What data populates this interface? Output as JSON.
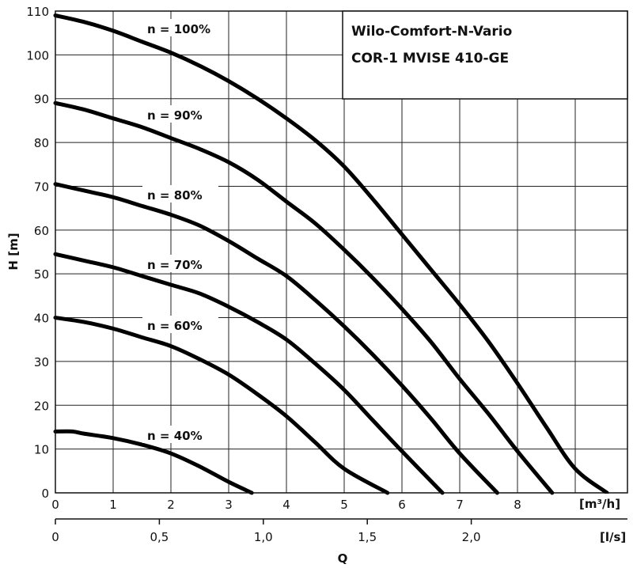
{
  "chart_data": {
    "type": "line",
    "title_lines": [
      "Wilo-Comfort-N-Vario",
      "COR-1 MVISE 410-GE"
    ],
    "ylabel": "H [m]",
    "xlabel": "Q",
    "x_unit_primary": "[m³/h]",
    "x_unit_secondary": "[l/s]",
    "xlim": [
      0,
      10
    ],
    "ylim": [
      0,
      110
    ],
    "x_ticks": [
      "0",
      "1",
      "2",
      "3",
      "4",
      "5",
      "6",
      "7",
      "8"
    ],
    "x_ticks_secondary": [
      {
        "value": 0,
        "label": "0"
      },
      {
        "value": 0.5,
        "label": "0,5"
      },
      {
        "value": 1.0,
        "label": "1,0"
      },
      {
        "value": 1.5,
        "label": "1,5"
      },
      {
        "value": 2.0,
        "label": "2,0"
      }
    ],
    "y_ticks": [
      "0",
      "10",
      "20",
      "30",
      "40",
      "50",
      "60",
      "70",
      "80",
      "90",
      "100",
      "110"
    ],
    "grid": true,
    "series": [
      {
        "name": "n = 100%",
        "x": [
          0,
          0.5,
          1,
          1.5,
          2,
          2.5,
          3,
          3.5,
          4,
          4.5,
          5,
          5.5,
          6,
          6.5,
          7,
          7.5,
          8,
          8.5,
          9,
          9.55
        ],
        "y": [
          109,
          107.5,
          105.5,
          103,
          100.5,
          97.5,
          94,
          90,
          85.5,
          80.5,
          74.5,
          67,
          59,
          51,
          43,
          34.5,
          25,
          15,
          5.5,
          0
        ]
      },
      {
        "name": "n = 90%",
        "x": [
          0,
          0.5,
          1,
          1.5,
          2,
          2.5,
          3,
          3.5,
          4,
          4.5,
          5,
          5.5,
          6,
          6.5,
          7,
          7.5,
          8,
          8.6
        ],
        "y": [
          89,
          87.5,
          85.5,
          83.5,
          81,
          78.5,
          75.5,
          71.5,
          66.5,
          61.5,
          55.5,
          49,
          42,
          34.5,
          26,
          18,
          9.5,
          0
        ]
      },
      {
        "name": "n = 80%",
        "x": [
          0,
          0.5,
          1,
          1.5,
          2,
          2.5,
          3,
          3.5,
          4,
          4.5,
          5,
          5.5,
          6,
          6.5,
          7,
          7.65
        ],
        "y": [
          70.5,
          69,
          67.5,
          65.5,
          63.5,
          61,
          57.5,
          53.5,
          49.5,
          44,
          38,
          31.5,
          24.5,
          17,
          9,
          0
        ]
      },
      {
        "name": "n = 70%",
        "x": [
          0,
          0.5,
          1,
          1.5,
          2,
          2.5,
          3,
          3.5,
          4,
          4.5,
          5,
          5.5,
          6,
          6.7
        ],
        "y": [
          54.5,
          53,
          51.5,
          49.5,
          47.5,
          45.5,
          42.5,
          39,
          35,
          29.5,
          23.5,
          16.5,
          9.5,
          0
        ]
      },
      {
        "name": "n = 60%",
        "x": [
          0,
          0.5,
          1,
          1.5,
          2,
          2.5,
          3,
          3.5,
          4,
          4.5,
          5,
          5.75
        ],
        "y": [
          40,
          39,
          37.5,
          35.5,
          33.5,
          30.5,
          27,
          22.5,
          17.5,
          11.5,
          5.5,
          0
        ]
      },
      {
        "name": "n = 40%",
        "x": [
          0,
          0.3,
          0.5,
          1,
          1.5,
          2,
          2.5,
          3,
          3.4
        ],
        "y": [
          14,
          14,
          13.5,
          12.5,
          11,
          9,
          6,
          2.5,
          0
        ]
      }
    ],
    "curve_labels": [
      {
        "text": "n = 100%"
      },
      {
        "text": "n = 90%"
      },
      {
        "text": "n = 80%"
      },
      {
        "text": "n = 70%"
      },
      {
        "text": "n = 60%"
      },
      {
        "text": "n = 40%"
      }
    ]
  }
}
